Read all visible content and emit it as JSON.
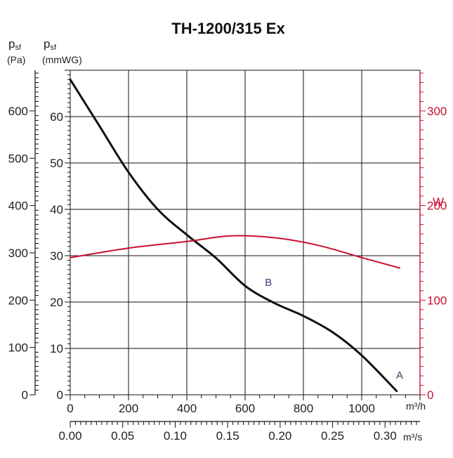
{
  "chart_data": {
    "type": "line",
    "title": "TH-1200/315 Ex",
    "x_axis": {
      "unit": "m³/h",
      "range": [
        0,
        1200
      ],
      "ticks": [
        "0",
        "200",
        "400",
        "600",
        "800",
        "1000"
      ]
    },
    "x_axis_secondary": {
      "unit": "m³/s",
      "range": [
        0,
        0.3333
      ],
      "ticks": [
        "0.00",
        "0.05",
        "0.10",
        "0.15",
        "0.20",
        "0.25",
        "0.30"
      ]
    },
    "y_axis_pa": {
      "label_main": "p",
      "label_sub": "sf",
      "unit": "(Pa)",
      "range": [
        0,
        686
      ],
      "ticks": [
        "0",
        "100",
        "200",
        "300",
        "400",
        "500",
        "600"
      ]
    },
    "y_axis_mmwg": {
      "label_main": "p",
      "label_sub": "sf",
      "unit": "(mmWG)",
      "range": [
        0,
        70
      ],
      "ticks": [
        "0",
        "10",
        "20",
        "30",
        "40",
        "50",
        "60"
      ]
    },
    "y_axis_power": {
      "unit": "W",
      "range": [
        0,
        343
      ],
      "ticks": [
        "0",
        "100",
        "200",
        "300"
      ],
      "color": "#c8102e"
    },
    "grid": true,
    "series": [
      {
        "axis": "mmWG",
        "color": "#111111",
        "x": [
          0,
          100,
          200,
          300,
          400,
          500,
          600,
          700,
          800,
          900,
          1000,
          1120
        ],
        "y": [
          68,
          58,
          48,
          40,
          34.5,
          29.5,
          23.5,
          19.8,
          17,
          13.5,
          8.5,
          0.8
        ]
      },
      {
        "axis": "W",
        "color": "#c8102e",
        "x": [
          0,
          200,
          400,
          550,
          700,
          850,
          1000,
          1130
        ],
        "y": [
          145,
          155,
          162,
          168,
          166,
          158,
          145,
          134
        ]
      }
    ],
    "annotations": [
      {
        "text": "B",
        "x": 680,
        "y": 23.5
      },
      {
        "text": "A",
        "x": 1130,
        "y": 3.5
      }
    ]
  }
}
